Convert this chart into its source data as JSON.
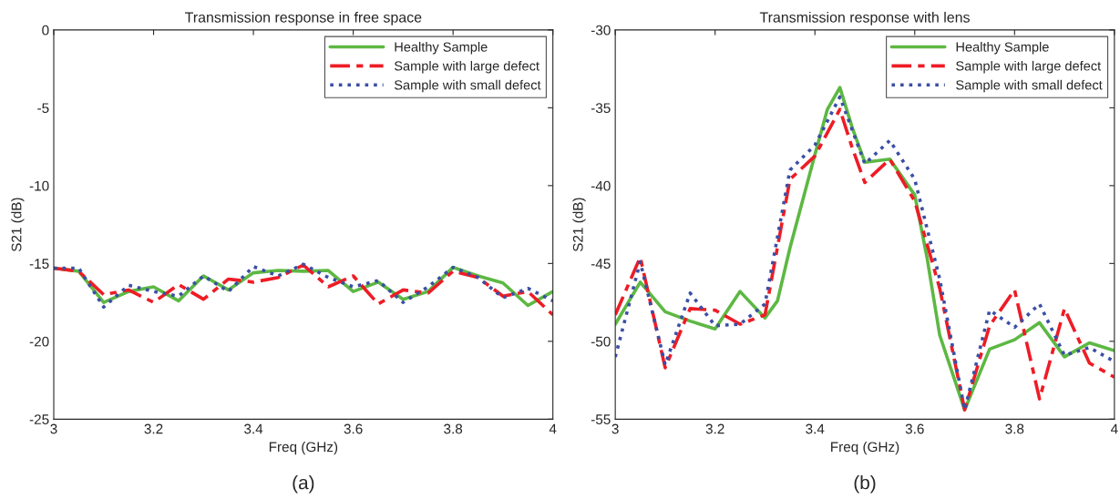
{
  "chart_data": [
    {
      "type": "line",
      "title": "Transmission response in free space",
      "xlabel": "Freq (GHz)",
      "ylabel": "S21 (dB)",
      "xlim": [
        3,
        4
      ],
      "ylim": [
        -25,
        0
      ],
      "xticks": [
        3,
        3.2,
        3.4,
        3.6,
        3.8,
        4
      ],
      "yticks": [
        -25,
        -20,
        -15,
        -10,
        -5,
        0
      ],
      "grid": false,
      "legend": "top right",
      "annotations": [
        "(a)"
      ],
      "series": [
        {
          "name": "Healthy Sample",
          "color": "#5db843",
          "line_style": "solid",
          "x": [
            3.0,
            3.05,
            3.1,
            3.15,
            3.2,
            3.25,
            3.3,
            3.35,
            3.4,
            3.45,
            3.5,
            3.55,
            3.6,
            3.65,
            3.7,
            3.75,
            3.8,
            3.85,
            3.9,
            3.95,
            4.0
          ],
          "values": [
            -15.3,
            -15.5,
            -17.5,
            -16.8,
            -16.5,
            -17.4,
            -15.8,
            -16.7,
            -15.6,
            -15.45,
            -15.5,
            -15.45,
            -16.8,
            -16.2,
            -17.3,
            -16.8,
            -15.25,
            -15.8,
            -16.25,
            -17.7,
            -16.8
          ]
        },
        {
          "name": "Sample with large defect",
          "color": "#ee1c25",
          "line_style": "dashed",
          "x": [
            3.0,
            3.05,
            3.1,
            3.15,
            3.2,
            3.25,
            3.3,
            3.35,
            3.4,
            3.45,
            3.5,
            3.55,
            3.6,
            3.65,
            3.7,
            3.75,
            3.8,
            3.85,
            3.9,
            3.95,
            4.0
          ],
          "values": [
            -15.3,
            -15.5,
            -17.0,
            -16.7,
            -17.5,
            -16.35,
            -17.3,
            -16.0,
            -16.2,
            -15.9,
            -15.1,
            -16.5,
            -15.8,
            -17.6,
            -16.7,
            -16.9,
            -15.5,
            -15.9,
            -17.1,
            -16.8,
            -18.3
          ]
        },
        {
          "name": "Sample with small defect",
          "color": "#3a4fa5",
          "line_style": "dotted",
          "x": [
            3.0,
            3.05,
            3.1,
            3.15,
            3.2,
            3.25,
            3.3,
            3.35,
            3.4,
            3.45,
            3.5,
            3.55,
            3.6,
            3.65,
            3.7,
            3.75,
            3.8,
            3.85,
            3.9,
            3.95,
            4.0
          ],
          "values": [
            -15.3,
            -15.3,
            -17.8,
            -16.4,
            -16.8,
            -17.1,
            -15.8,
            -16.8,
            -15.2,
            -15.8,
            -15.05,
            -15.9,
            -16.5,
            -16.1,
            -17.5,
            -16.5,
            -15.25,
            -15.9,
            -17.2,
            -16.6,
            -17.4
          ]
        }
      ]
    },
    {
      "type": "line",
      "title": "Transmission response with lens",
      "xlabel": "Freq (GHz)",
      "ylabel": "S21 (dB)",
      "xlim": [
        3,
        4
      ],
      "ylim": [
        -55,
        -30
      ],
      "xticks": [
        3,
        3.2,
        3.4,
        3.6,
        3.8,
        4
      ],
      "yticks": [
        -55,
        -50,
        -45,
        -40,
        -35,
        -30
      ],
      "grid": false,
      "legend": "top right",
      "annotations": [
        "(b)"
      ],
      "series": [
        {
          "name": "Healthy Sample",
          "color": "#5db843",
          "line_style": "solid",
          "x": [
            3.0,
            3.05,
            3.1,
            3.15,
            3.2,
            3.25,
            3.3,
            3.325,
            3.35,
            3.4,
            3.425,
            3.45,
            3.475,
            3.5,
            3.55,
            3.6,
            3.625,
            3.65,
            3.7,
            3.75,
            3.8,
            3.85,
            3.9,
            3.95,
            4.0
          ],
          "values": [
            -48.9,
            -46.2,
            -48.1,
            -48.7,
            -49.2,
            -46.8,
            -48.5,
            -47.4,
            -44.0,
            -38.0,
            -35.1,
            -33.7,
            -36.3,
            -38.5,
            -38.3,
            -40.6,
            -44.7,
            -49.6,
            -54.4,
            -50.5,
            -49.9,
            -48.8,
            -51.0,
            -50.1,
            -50.6
          ]
        },
        {
          "name": "Sample with large defect",
          "color": "#ee1c25",
          "line_style": "dashed",
          "x": [
            3.0,
            3.05,
            3.1,
            3.15,
            3.2,
            3.25,
            3.3,
            3.35,
            3.4,
            3.45,
            3.475,
            3.5,
            3.55,
            3.6,
            3.65,
            3.7,
            3.75,
            3.8,
            3.85,
            3.9,
            3.95,
            4.0
          ],
          "values": [
            -48.3,
            -44.6,
            -51.7,
            -47.9,
            -48.0,
            -48.9,
            -48.3,
            -39.6,
            -38.1,
            -35.1,
            -37.6,
            -39.8,
            -38.3,
            -41.0,
            -46.6,
            -54.4,
            -49.0,
            -46.7,
            -53.7,
            -47.9,
            -51.4,
            -52.3
          ]
        },
        {
          "name": "Sample with small defect",
          "color": "#3a4fa5",
          "line_style": "dotted",
          "x": [
            3.0,
            3.05,
            3.1,
            3.15,
            3.2,
            3.25,
            3.3,
            3.35,
            3.4,
            3.45,
            3.5,
            3.55,
            3.6,
            3.65,
            3.7,
            3.75,
            3.8,
            3.85,
            3.9,
            3.95,
            4.0
          ],
          "values": [
            -51.0,
            -44.9,
            -51.5,
            -46.9,
            -49.0,
            -48.9,
            -47.6,
            -39.0,
            -37.4,
            -34.3,
            -38.6,
            -37.1,
            -39.6,
            -46.0,
            -54.4,
            -48.0,
            -49.1,
            -47.6,
            -50.9,
            -50.4,
            -51.3
          ]
        }
      ]
    }
  ]
}
